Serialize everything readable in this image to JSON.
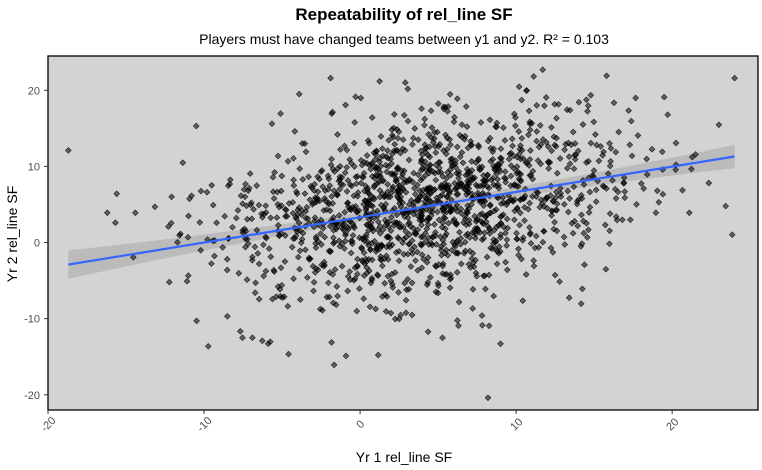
{
  "chart_data": {
    "type": "scatter",
    "title": "Repeatability of rel_line SF",
    "subtitle": "Players must have changed teams between y1 and y2. R² = 0.103",
    "xlabel": "Yr 1 rel_line SF",
    "ylabel": "Yr 2 rel_line SF",
    "xlim": [
      -20.0,
      25.5
    ],
    "ylim": [
      -22.0,
      24.5
    ],
    "x_ticks": [
      -20,
      -10,
      0,
      10,
      20
    ],
    "x_tick_labels": [
      "-20",
      "-10",
      "0",
      "10",
      "20"
    ],
    "y_ticks": [
      -20,
      -10,
      0,
      10,
      20
    ],
    "y_tick_labels": [
      "-20",
      "-10",
      "0",
      "10",
      "20"
    ],
    "panel_background": "#d3d3d3",
    "point_color": "#000000",
    "point_opacity": 0.55,
    "point_shape": "diamond",
    "point_count": 1500,
    "regression": {
      "x_start": -18.7,
      "y_start": -2.9,
      "x_end": 24.0,
      "y_end": 11.3,
      "color": "#3366ff",
      "ci_color": "#b3b3b3"
    },
    "notable_points": [
      {
        "x": -18.7,
        "y": 12.1
      },
      {
        "x": -16.2,
        "y": 3.9
      },
      {
        "x": -15.6,
        "y": 6.4
      },
      {
        "x": -14.4,
        "y": 3.9
      },
      {
        "x": -10.5,
        "y": 15.3
      },
      {
        "x": 24.0,
        "y": 21.6
      },
      {
        "x": 8.2,
        "y": -20.4
      },
      {
        "x": 11.7,
        "y": 22.7
      },
      {
        "x": 15.8,
        "y": 21.9
      },
      {
        "x": 21.1,
        "y": 3.9
      },
      {
        "x": -0.9,
        "y": -14.9
      },
      {
        "x": -6.9,
        "y": -12.5
      },
      {
        "x": 2.9,
        "y": 21.0
      },
      {
        "x": -3.9,
        "y": 19.5
      },
      {
        "x": 9.0,
        "y": -13.3
      }
    ]
  }
}
